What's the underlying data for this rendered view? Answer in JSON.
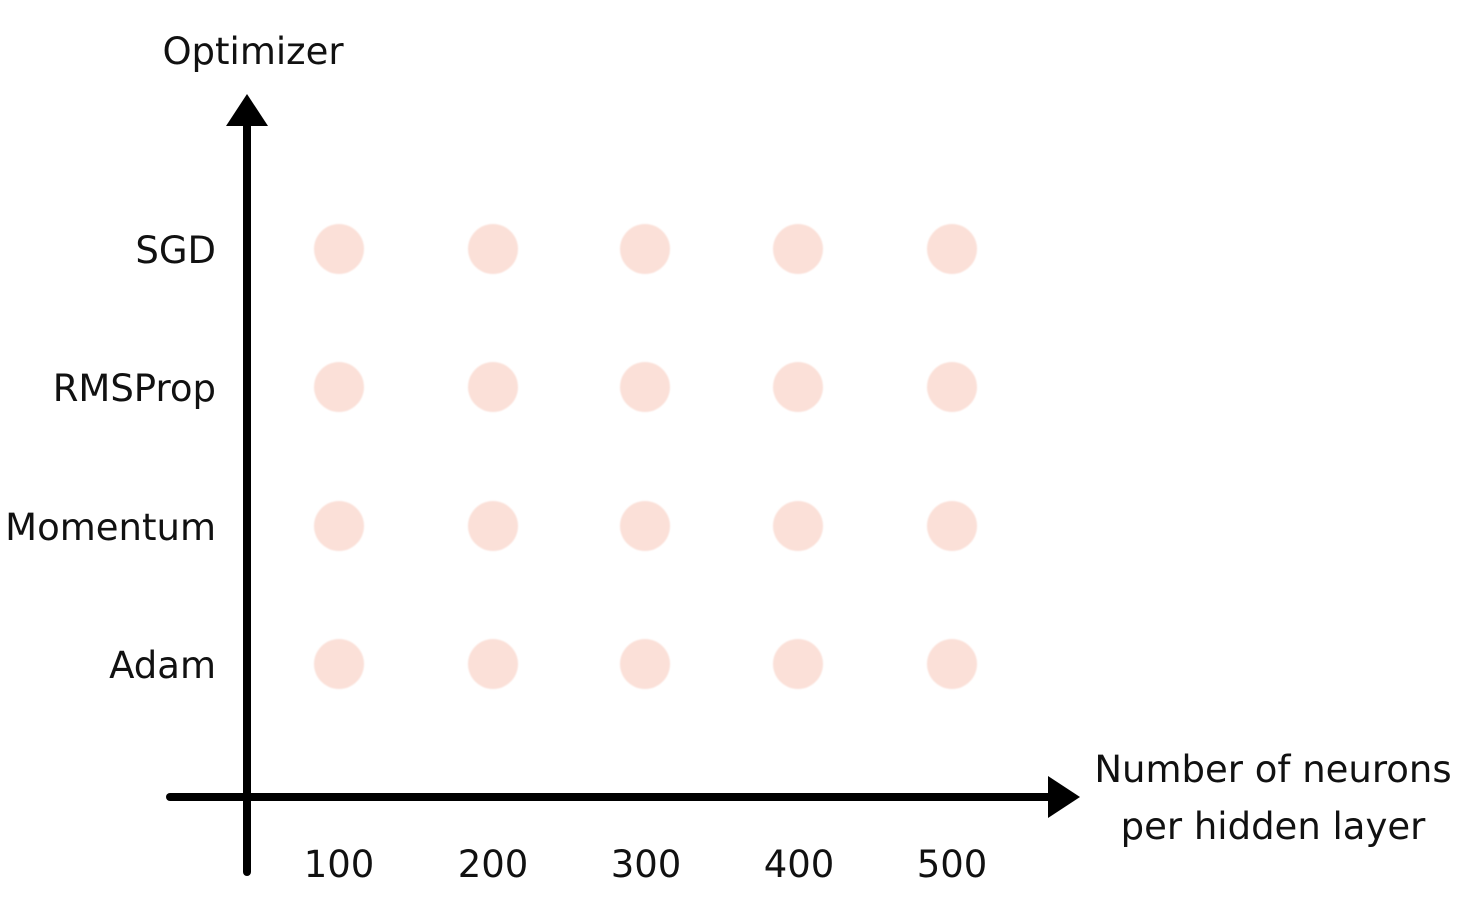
{
  "chart_data": {
    "type": "scatter",
    "title": "",
    "ylabel": "Optimizer",
    "xlabel_lines": [
      "Number of neurons",
      "per hidden layer"
    ],
    "x_categories": [
      "100",
      "200",
      "300",
      "400",
      "500"
    ],
    "y_categories": [
      "SGD",
      "RMSProp",
      "Momentum",
      "Adam"
    ],
    "points": [
      {
        "x": "100",
        "y": "SGD"
      },
      {
        "x": "200",
        "y": "SGD"
      },
      {
        "x": "300",
        "y": "SGD"
      },
      {
        "x": "400",
        "y": "SGD"
      },
      {
        "x": "500",
        "y": "SGD"
      },
      {
        "x": "100",
        "y": "RMSProp"
      },
      {
        "x": "200",
        "y": "RMSProp"
      },
      {
        "x": "300",
        "y": "RMSProp"
      },
      {
        "x": "400",
        "y": "RMSProp"
      },
      {
        "x": "500",
        "y": "RMSProp"
      },
      {
        "x": "100",
        "y": "Momentum"
      },
      {
        "x": "200",
        "y": "Momentum"
      },
      {
        "x": "300",
        "y": "Momentum"
      },
      {
        "x": "400",
        "y": "Momentum"
      },
      {
        "x": "500",
        "y": "Momentum"
      },
      {
        "x": "100",
        "y": "Adam"
      },
      {
        "x": "200",
        "y": "Adam"
      },
      {
        "x": "300",
        "y": "Adam"
      },
      {
        "x": "400",
        "y": "Adam"
      },
      {
        "x": "500",
        "y": "Adam"
      }
    ],
    "grid": false,
    "legend": "none",
    "point_color": "#fbe0d8",
    "axis_color": "#000000"
  }
}
